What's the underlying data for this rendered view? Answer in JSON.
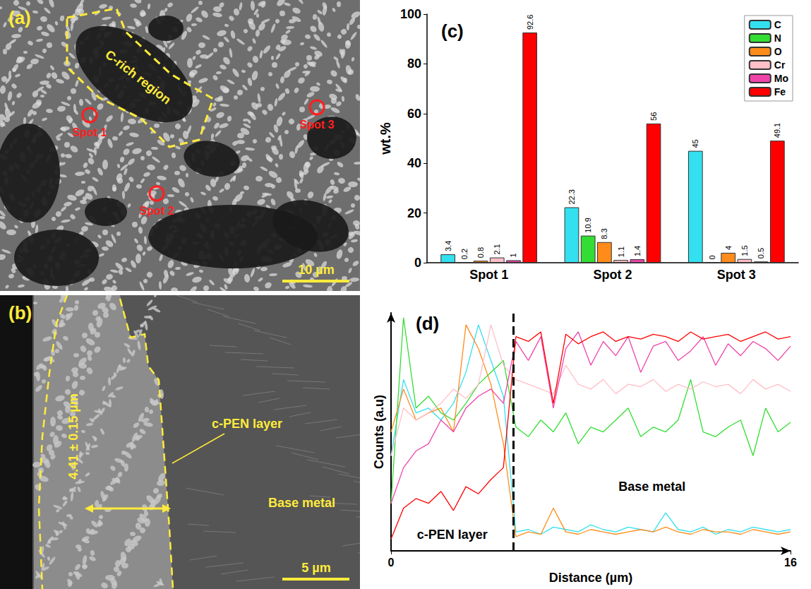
{
  "micrographs": [
    {
      "label": "(a)",
      "region": "C-rich region",
      "spots": [
        "Spot 1",
        "Spot 2",
        "Spot 3"
      ],
      "scale_bar": "10 µm"
    },
    {
      "label": "(b)",
      "thickness": "4.41 ± 0.15 µm",
      "layer": "c-PEN layer",
      "base": "Base metal",
      "scale_bar": "5 µm"
    }
  ],
  "chart_data": [
    {
      "type": "bar",
      "title": "(c)",
      "y_label": "wt.%",
      "categories": [
        "Spot 1",
        "Spot 2",
        "Spot 3"
      ],
      "series": [
        {
          "name": "C",
          "color": "#33e0f0",
          "values": [
            3.4,
            22.3,
            45
          ]
        },
        {
          "name": "N",
          "color": "#33dd33",
          "values": [
            0.2,
            10.9,
            0
          ]
        },
        {
          "name": "O",
          "color": "#ff8c1a",
          "values": [
            0.8,
            8.3,
            4
          ]
        },
        {
          "name": "Cr",
          "color": "#ffbfc8",
          "values": [
            2.1,
            1.1,
            1.5
          ]
        },
        {
          "name": "Mo",
          "color": "#ee44aa",
          "values": [
            1,
            1.4,
            0.5
          ]
        },
        {
          "name": "Fe",
          "color": "#ff0000",
          "values": [
            92.6,
            56,
            49.1
          ]
        }
      ],
      "ylim": [
        0,
        100
      ],
      "yticks": [
        0,
        20,
        40,
        60,
        80,
        100
      ],
      "data_labels": true,
      "legend": "upper right",
      "grid": false
    },
    {
      "type": "line",
      "title": "(d)",
      "x_label": "Distance (µm)",
      "y_label": "Counts (a.u)",
      "annotations": [
        "c-PEN layer",
        "Base metal"
      ],
      "boundary": 4.9,
      "x": [
        0,
        0.5,
        1,
        1.5,
        2,
        2.5,
        3,
        3.5,
        4,
        4.5,
        5,
        5.5,
        6,
        6.5,
        7,
        7.5,
        8,
        8.5,
        9,
        9.5,
        10,
        10.5,
        11,
        11.5,
        12,
        12.5,
        13,
        13.5,
        14,
        14.5,
        15,
        15.5,
        16
      ],
      "series": [
        {
          "name": "C",
          "color": "#33e0f0",
          "values": [
            40,
            72,
            58,
            60,
            55,
            62,
            75,
            95,
            80,
            65,
            8,
            9,
            7,
            10,
            9,
            8,
            11,
            9,
            8,
            10,
            9,
            8,
            16,
            9,
            8,
            10,
            7,
            9,
            8,
            10,
            9,
            8,
            9
          ]
        },
        {
          "name": "N",
          "color": "#33dd33",
          "values": [
            20,
            98,
            60,
            65,
            58,
            55,
            62,
            70,
            75,
            80,
            52,
            48,
            55,
            50,
            58,
            45,
            52,
            50,
            55,
            60,
            48,
            52,
            50,
            55,
            72,
            50,
            48,
            52,
            55,
            40,
            60,
            50,
            54
          ]
        },
        {
          "name": "O",
          "color": "#ff8c1a",
          "values": [
            50,
            68,
            55,
            58,
            60,
            50,
            95,
            85,
            70,
            45,
            6,
            8,
            7,
            18,
            8,
            7,
            9,
            8,
            7,
            8,
            9,
            8,
            10,
            8,
            7,
            9,
            8,
            8,
            7,
            9,
            8,
            7,
            8
          ]
        },
        {
          "name": "Cr",
          "color": "#ffbfc8",
          "values": [
            40,
            60,
            55,
            58,
            62,
            68,
            64,
            70,
            95,
            78,
            72,
            70,
            68,
            66,
            78,
            70,
            68,
            72,
            66,
            70,
            69,
            72,
            67,
            70,
            68,
            71,
            69,
            70,
            66,
            72,
            68,
            70,
            67
          ]
        },
        {
          "name": "Mo",
          "color": "#ee44aa",
          "values": [
            20,
            35,
            42,
            45,
            55,
            50,
            60,
            65,
            68,
            62,
            88,
            80,
            90,
            60,
            85,
            92,
            78,
            88,
            82,
            90,
            75,
            86,
            88,
            80,
            84,
            90,
            78,
            87,
            82,
            88,
            85,
            80,
            86
          ]
        },
        {
          "name": "Fe",
          "color": "#ff0000",
          "values": [
            5,
            18,
            22,
            20,
            25,
            17,
            27,
            24,
            30,
            35,
            90,
            88,
            92,
            62,
            91,
            87,
            90,
            92,
            88,
            90,
            89,
            91,
            90,
            88,
            92,
            89,
            90,
            91,
            88,
            90,
            92,
            89,
            90
          ]
        }
      ],
      "xlim": [
        0,
        16
      ],
      "xticks": [
        0,
        16
      ],
      "ylim": [
        0,
        100
      ],
      "tick_labels": "x",
      "grid": false
    }
  ]
}
